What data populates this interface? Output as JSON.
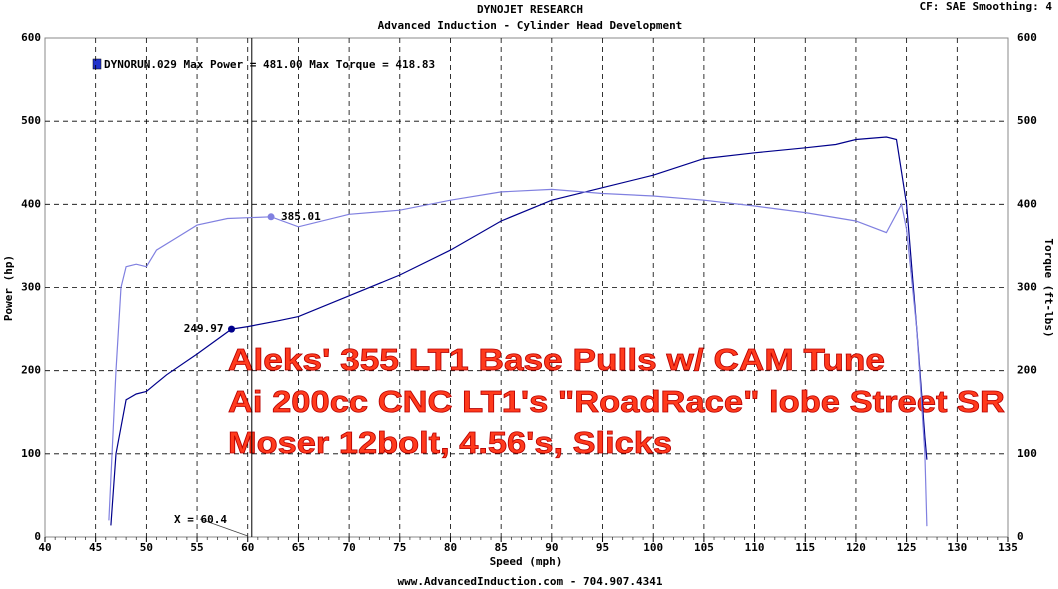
{
  "chart_data": {
    "type": "line",
    "title": "DYNOJET RESEARCH",
    "subtitle": "Advanced Induction - Cylinder Head Development",
    "settings_label": "CF: SAE  Smoothing: 4",
    "legend_label": "DYNORUN.029 Max Power = 481.00     Max Torque = 418.83",
    "x_label": "Speed (mph)",
    "y_label": "Power (hp)",
    "y2_label": "Torque (ft-lbs)",
    "footer": "www.AdvancedInduction.com  -  704.907.4341",
    "overlay_lines": [
      "Aleks' 355 LT1 Base Pulls w/ CAM Tune",
      "Ai 200cc CNC LT1's \"RoadRace\" lobe Street SR",
      "Moser 12bolt, 4.56's, Slicks"
    ],
    "cursor_x": 60.4,
    "cursor_label": "X = 60.4",
    "xlim": [
      40,
      135
    ],
    "xticks": [
      40,
      45,
      50,
      55,
      60,
      65,
      70,
      75,
      80,
      85,
      90,
      95,
      100,
      105,
      110,
      115,
      120,
      125,
      130,
      135
    ],
    "ylim": [
      0,
      600
    ],
    "yticks": [
      0,
      100,
      200,
      300,
      400,
      500,
      600
    ],
    "y2lim": [
      0,
      600
    ],
    "y2ticks": [
      0,
      100,
      200,
      300,
      400,
      500,
      600
    ],
    "grid": true,
    "series": [
      {
        "name": "Power",
        "color": "#00008b",
        "x": [
          46.5,
          47,
          48,
          49,
          50,
          51,
          52,
          55,
          58.4,
          60,
          63,
          65,
          70,
          75,
          80,
          85,
          90,
          95,
          100,
          105,
          110,
          115,
          118,
          120,
          123,
          124,
          125,
          126,
          126.8,
          127
        ],
        "values": [
          14,
          100,
          165,
          172,
          175,
          185,
          195,
          220,
          249.97,
          253,
          260,
          265,
          290,
          315,
          345,
          380,
          405,
          420,
          435,
          455,
          462,
          468,
          472,
          478,
          481,
          478,
          400,
          250,
          120,
          93
        ],
        "marker": {
          "x": 58.4,
          "y": 249.97
        }
      },
      {
        "name": "Torque",
        "color": "#8080e0",
        "axis": "y2",
        "x": [
          46.3,
          47,
          47.5,
          48,
          49,
          50,
          51,
          53,
          55,
          58,
          62.3,
          65,
          70,
          75,
          80,
          85,
          90,
          95,
          100,
          105,
          110,
          115,
          120,
          123,
          124.5,
          125,
          126,
          126.8,
          127
        ],
        "values": [
          20,
          200,
          300,
          325,
          328,
          325,
          345,
          360,
          375,
          383,
          385.01,
          373,
          388,
          393,
          405,
          415,
          418,
          413,
          410,
          405,
          398,
          390,
          380,
          366,
          400,
          370,
          250,
          100,
          13
        ],
        "marker": {
          "x": 62.3,
          "y": 385.01
        }
      }
    ]
  }
}
